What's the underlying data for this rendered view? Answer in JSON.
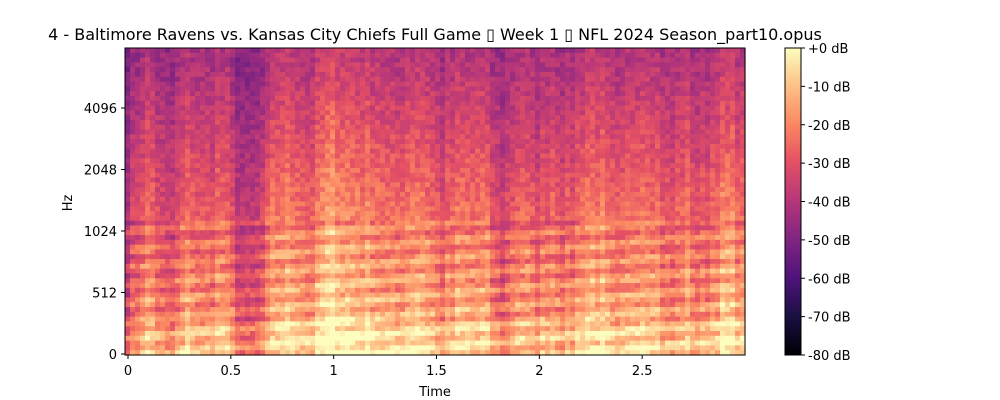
{
  "chart_data": {
    "type": "heatmap",
    "title": "4 - Baltimore Ravens vs. Kansas City Chiefs Full Game ▯ Week 1 ▯ NFL 2024 Season_part10.opus",
    "xlabel": "Time",
    "ylabel": "Hz",
    "xlim": [
      0,
      3.0
    ],
    "x_ticks": [
      {
        "value": 0,
        "label": "0"
      },
      {
        "value": 0.5,
        "label": "0.5"
      },
      {
        "value": 1.0,
        "label": "1"
      },
      {
        "value": 1.5,
        "label": "1.5"
      },
      {
        "value": 2.0,
        "label": "2"
      },
      {
        "value": 2.5,
        "label": "2.5"
      }
    ],
    "y_scale": "log2-like (mel)",
    "y_ticks": [
      {
        "value": 0,
        "label": "0"
      },
      {
        "value": 512,
        "label": "512"
      },
      {
        "value": 1024,
        "label": "1024"
      },
      {
        "value": 2048,
        "label": "2048"
      },
      {
        "value": 4096,
        "label": "4096"
      }
    ],
    "colorbar": {
      "colormap": "magma",
      "range_db": [
        -80,
        0
      ],
      "ticks": [
        {
          "value": 0,
          "label": "+0 dB"
        },
        {
          "value": -10,
          "label": "-10 dB"
        },
        {
          "value": -20,
          "label": "-20 dB"
        },
        {
          "value": -30,
          "label": "-30 dB"
        },
        {
          "value": -40,
          "label": "-40 dB"
        },
        {
          "value": -50,
          "label": "-50 dB"
        },
        {
          "value": -60,
          "label": "-60 dB"
        },
        {
          "value": -70,
          "label": "-70 dB"
        },
        {
          "value": -80,
          "label": "-80 dB"
        }
      ]
    },
    "bright_events_s": [
      0.1,
      0.3,
      0.45,
      0.72,
      0.82,
      0.95,
      1.02,
      1.12,
      1.22,
      1.35,
      1.45,
      1.6,
      1.72,
      1.9,
      2.05,
      2.2,
      2.3,
      2.45,
      2.55,
      2.7,
      2.85,
      2.95
    ],
    "grid": false
  }
}
